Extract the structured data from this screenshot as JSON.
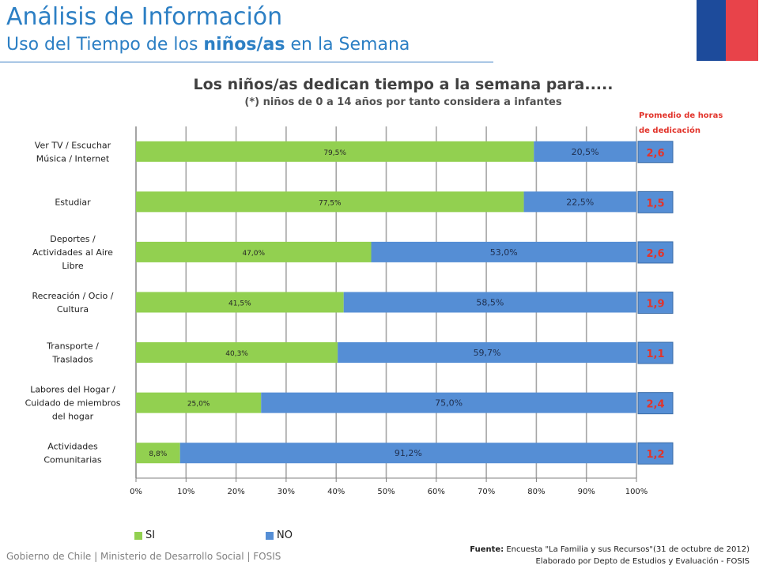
{
  "header": {
    "title": "Análisis de Información",
    "subtitle_pre": "Uso del Tiempo de los",
    "subtitle_bold": "niños/as",
    "subtitle_post": "en la Semana"
  },
  "colors": {
    "si": "#92d050",
    "no": "#558ed5",
    "avg_text": "#e2342b",
    "title_blue": "#2c7fc4",
    "flag_blue": "#1d4b9b",
    "flag_red": "#e8434a"
  },
  "avg_caption": {
    "line1": "Promedio de horas",
    "line2": "de dedicación"
  },
  "chart_data": {
    "type": "bar",
    "orientation": "horizontal",
    "stacked": true,
    "title": "Los niños/as dedican tiempo a la semana  para.....",
    "subtitle": "(*) niños de 0 a 14 años por tanto considera a infantes",
    "categories": [
      [
        "Ver TV / Escuchar",
        "Música / Internet"
      ],
      [
        "Estudiar"
      ],
      [
        "Deportes /",
        "Actividades al Aire",
        "Libre"
      ],
      [
        "Recreación / Ocio /",
        "Cultura"
      ],
      [
        "Transporte  /",
        "Traslados"
      ],
      [
        "Labores del Hogar /",
        "Cuidado de miembros",
        "del hogar"
      ],
      [
        "Actividades",
        "Comunitarias"
      ]
    ],
    "series": [
      {
        "name": "SI",
        "values": [
          79.5,
          77.5,
          47.0,
          41.5,
          40.3,
          25.0,
          8.8
        ],
        "labels": [
          "79,5%",
          "77,5%",
          "47,0%",
          "41,5%",
          "40,3%",
          "25,0%",
          "8,8%"
        ]
      },
      {
        "name": "NO",
        "values": [
          20.5,
          22.5,
          53.0,
          58.5,
          59.7,
          75.0,
          91.2
        ],
        "labels": [
          "20,5%",
          "22,5%",
          "53,0%",
          "58,5%",
          "59,7%",
          "75,0%",
          "91,2%"
        ]
      }
    ],
    "averages_hours": [
      "2,6",
      "1,5",
      "2,6",
      "1,9",
      "1,1",
      "2,4",
      "1,2"
    ],
    "xlim": [
      0,
      100
    ],
    "xticks": [
      "0%",
      "10%",
      "20%",
      "30%",
      "40%",
      "50%",
      "60%",
      "70%",
      "80%",
      "90%",
      "100%"
    ],
    "grid": true,
    "legend": "bottom"
  },
  "footer": {
    "left": "Gobierno de Chile | Ministerio de Desarrollo Social | FOSIS",
    "source_label": "Fuente:",
    "source_text": "Encuesta \"La Familia y sus Recursos\"(31  de  octubre de 2012)",
    "credit": "Elaborado por Depto de Estudios y Evaluación - FOSIS"
  }
}
